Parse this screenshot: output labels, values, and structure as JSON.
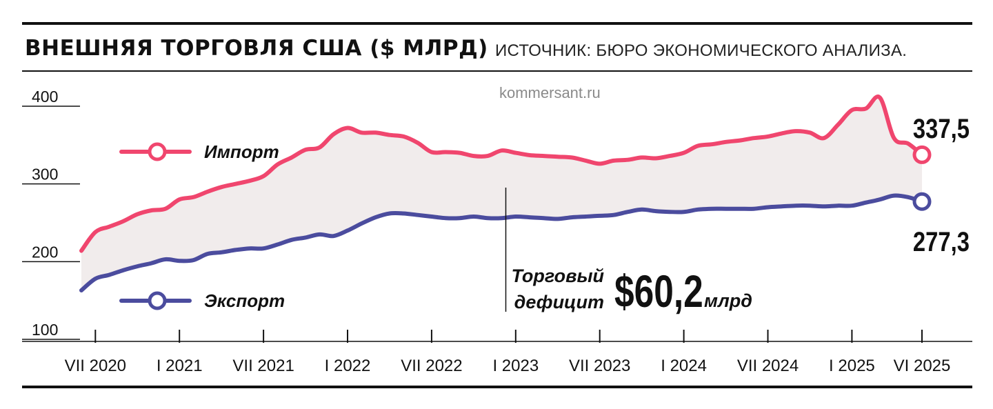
{
  "header": {
    "title": "ВНЕШНЯЯ ТОРГОВЛЯ США ($ МЛРД)",
    "source": "ИСТОЧНИК: БЮРО ЭКОНОМИЧЕСКОГО АНАЛИЗА.",
    "watermark": "kommersant.ru"
  },
  "colors": {
    "imports": "#f0466e",
    "exports": "#4b4c9e",
    "fill": "#f1ecec",
    "ink": "#111111"
  },
  "annotation": {
    "line1": "Торговый",
    "line2": "дефицит",
    "value": "$60,2",
    "unit": "млрд"
  },
  "chart_data": {
    "type": "line",
    "ylim": [
      100,
      420
    ],
    "yticks": [
      "100",
      "200",
      "300",
      "400"
    ],
    "ytick_values": [
      100,
      200,
      300,
      400
    ],
    "x_start": "2020-06",
    "x_end": "2025-06",
    "xticks": [
      {
        "label": "VII 2020",
        "date": "2020-07"
      },
      {
        "label": "I 2021",
        "date": "2021-01"
      },
      {
        "label": "VII 2021",
        "date": "2021-07"
      },
      {
        "label": "I 2022",
        "date": "2022-01"
      },
      {
        "label": "VII 2022",
        "date": "2022-07"
      },
      {
        "label": "I 2023",
        "date": "2023-01"
      },
      {
        "label": "VII 2023",
        "date": "2023-07"
      },
      {
        "label": "I 2024",
        "date": "2024-01"
      },
      {
        "label": "VII 2024",
        "date": "2024-07"
      },
      {
        "label": "I 2025",
        "date": "2025-01"
      },
      {
        "label": "VI 2025",
        "date": "2025-06"
      }
    ],
    "marker_date": "2022-12",
    "x": [
      "2020-06",
      "2020-07",
      "2020-08",
      "2020-09",
      "2020-10",
      "2020-11",
      "2020-12",
      "2021-01",
      "2021-02",
      "2021-03",
      "2021-04",
      "2021-05",
      "2021-06",
      "2021-07",
      "2021-08",
      "2021-09",
      "2021-10",
      "2021-11",
      "2021-12",
      "2022-01",
      "2022-02",
      "2022-03",
      "2022-04",
      "2022-05",
      "2022-06",
      "2022-07",
      "2022-08",
      "2022-09",
      "2022-10",
      "2022-11",
      "2022-12",
      "2023-01",
      "2023-02",
      "2023-03",
      "2023-04",
      "2023-05",
      "2023-06",
      "2023-07",
      "2023-08",
      "2023-09",
      "2023-10",
      "2023-11",
      "2023-12",
      "2024-01",
      "2024-02",
      "2024-03",
      "2024-04",
      "2024-05",
      "2024-06",
      "2024-07",
      "2024-08",
      "2024-09",
      "2024-10",
      "2024-11",
      "2024-12",
      "2025-01",
      "2025-02",
      "2025-03",
      "2025-04",
      "2025-05",
      "2025-06"
    ],
    "series": [
      {
        "name": "Импорт",
        "end_label": "337,5",
        "values": [
          214,
          238,
          245,
          252,
          261,
          266,
          268,
          280,
          283,
          290,
          296,
          300,
          304,
          310,
          325,
          334,
          344,
          347,
          364,
          372,
          366,
          366,
          363,
          361,
          353,
          341,
          341,
          340,
          336,
          336,
          343,
          340,
          337,
          336,
          335,
          334,
          330,
          326,
          330,
          331,
          334,
          333,
          336,
          340,
          349,
          351,
          354,
          356,
          359,
          361,
          365,
          368,
          366,
          359,
          376,
          395,
          397,
          411,
          359,
          352,
          337.5
        ]
      },
      {
        "name": "Экспорт",
        "end_label": "277,3",
        "values": [
          163,
          178,
          183,
          189,
          194,
          198,
          203,
          201,
          202,
          210,
          212,
          215,
          217,
          217,
          222,
          228,
          231,
          235,
          233,
          240,
          249,
          257,
          262,
          262,
          260,
          258,
          256,
          256,
          258,
          256,
          256,
          258,
          257,
          256,
          255,
          257,
          258,
          259,
          260,
          264,
          267,
          265,
          264,
          264,
          267,
          268,
          268,
          268,
          268,
          270,
          271,
          272,
          272,
          271,
          272,
          272,
          276,
          280,
          285,
          283,
          277.3
        ]
      }
    ]
  }
}
